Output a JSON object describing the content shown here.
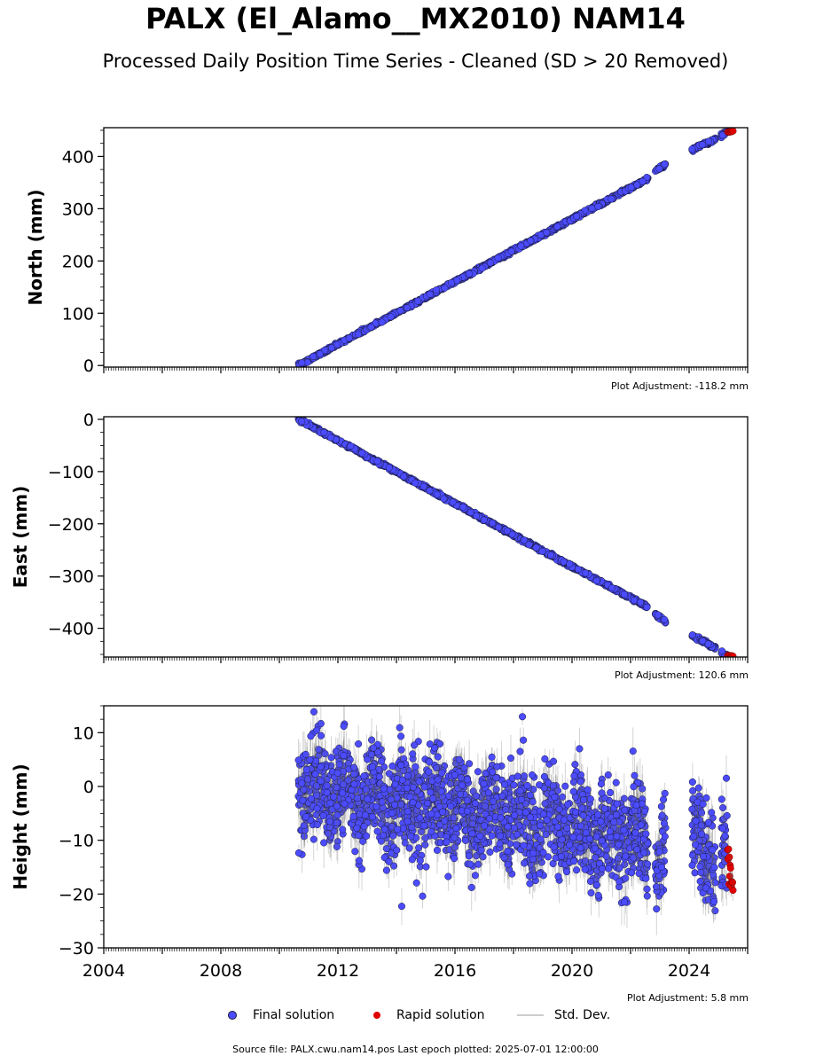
{
  "title": "PALX (El_Alamo__MX2010) NAM14",
  "subtitle": "Processed Daily Position Time Series - Cleaned (SD > 20 Removed)",
  "colors": {
    "final": "#4b4bff",
    "final_edge": "#1a1a3a",
    "rapid": "#e00000",
    "std_dev": "#bbbbbb"
  },
  "legend": {
    "final": "Final solution",
    "rapid": "Rapid solution",
    "std": "Std. Dev."
  },
  "footer": {
    "source": "Source file: PALX.cwu.nam14.pos  Last epoch plotted: 2025-07-01 12:00:00"
  },
  "chart_data": [
    {
      "type": "scatter",
      "ylabel": "North (mm)",
      "adjustment": "Plot Adjustment: -118.2 mm",
      "xlim": [
        2004,
        2026
      ],
      "ylim": [
        -3,
        455
      ],
      "yticks": [
        0,
        100,
        200,
        300,
        400
      ],
      "ytick_labels": [
        "0",
        "100",
        "200",
        "300",
        "400"
      ],
      "xtick_labels_shown": false,
      "final_segments": [
        {
          "x": [
            2010.65,
            2022.6
          ],
          "y": [
            0,
            358
          ]
        },
        {
          "x": [
            2022.85,
            2023.2
          ],
          "y": [
            372,
            385
          ]
        },
        {
          "x": [
            2024.1,
            2024.9
          ],
          "y": [
            413,
            433
          ]
        },
        {
          "x": [
            2025.1,
            2025.3
          ],
          "y": [
            441,
            447
          ]
        }
      ],
      "rapid_segment": {
        "x": [
          2025.32,
          2025.5
        ],
        "y": [
          446,
          449
        ]
      },
      "noise_mm": 1.5
    },
    {
      "type": "scatter",
      "ylabel": "East (mm)",
      "adjustment": "Plot Adjustment: 120.6 mm",
      "xlim": [
        2004,
        2026
      ],
      "ylim": [
        -455,
        5
      ],
      "yticks": [
        0,
        -100,
        -200,
        -300,
        -400
      ],
      "ytick_labels": [
        "0",
        "−100",
        "−200",
        "−300",
        "−400"
      ],
      "xtick_labels_shown": false,
      "final_segments": [
        {
          "x": [
            2010.65,
            2022.6
          ],
          "y": [
            0,
            -360
          ]
        },
        {
          "x": [
            2022.85,
            2023.2
          ],
          "y": [
            -373,
            -388
          ]
        },
        {
          "x": [
            2024.1,
            2024.9
          ],
          "y": [
            -413,
            -438
          ]
        },
        {
          "x": [
            2025.1,
            2025.3
          ],
          "y": [
            -448,
            -452
          ]
        }
      ],
      "rapid_segment": {
        "x": [
          2025.32,
          2025.5
        ],
        "y": [
          -451,
          -455
        ]
      },
      "noise_mm": 1.5
    },
    {
      "type": "scatter",
      "ylabel": "Height (mm)",
      "adjustment": "Plot Adjustment: 5.8 mm",
      "xlim": [
        2004,
        2026
      ],
      "ylim": [
        -30,
        15
      ],
      "yticks": [
        10,
        0,
        -10,
        -20,
        -30
      ],
      "ytick_labels": [
        "10",
        "0",
        "−10",
        "−20",
        "−30"
      ],
      "xticks": [
        2004,
        2008,
        2012,
        2016,
        2020,
        2024
      ],
      "xtick_labels": [
        "2004",
        "2008",
        "2012",
        "2016",
        "2020",
        "2024"
      ],
      "xtick_labels_shown": true,
      "final_segments": [
        {
          "x": [
            2010.65,
            2022.6
          ],
          "y": [
            0,
            -10
          ]
        },
        {
          "x": [
            2022.85,
            2023.2
          ],
          "y": [
            -13,
            -15
          ]
        },
        {
          "x": [
            2024.1,
            2024.9
          ],
          "y": [
            -9,
            -14
          ]
        },
        {
          "x": [
            2025.1,
            2025.3
          ],
          "y": [
            -12,
            -14
          ]
        }
      ],
      "rapid_segment": {
        "x": [
          2025.32,
          2025.5
        ],
        "y": [
          -13,
          -19
        ]
      },
      "noise_mm": 4.5
    }
  ]
}
